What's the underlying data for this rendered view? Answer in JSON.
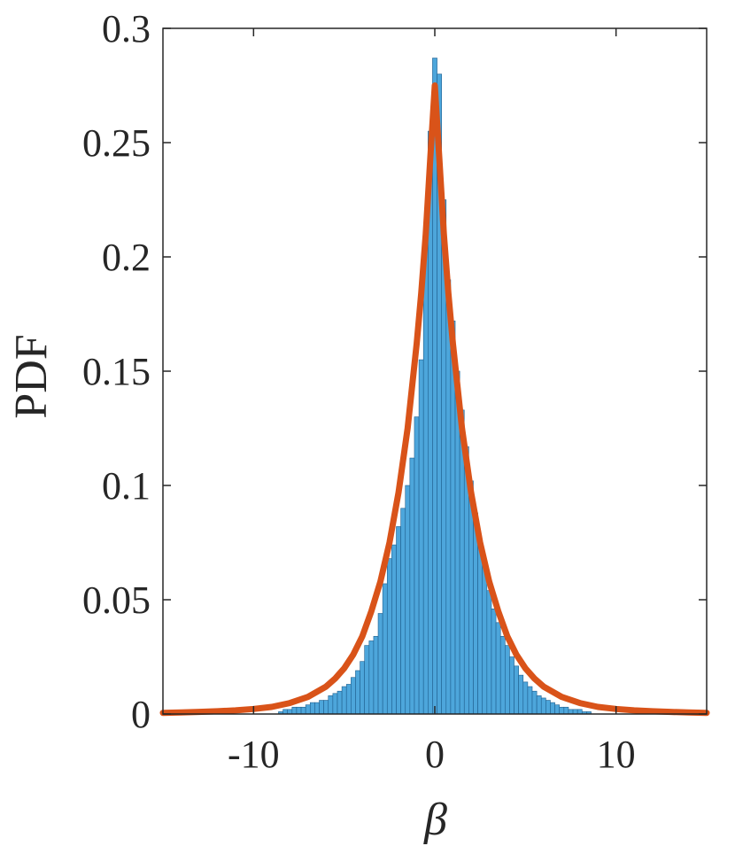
{
  "chart_data": {
    "type": "bar",
    "title": "",
    "xlabel": "β",
    "ylabel": "PDF",
    "xlim": [
      -15,
      15
    ],
    "ylim": [
      0,
      0.3
    ],
    "xticks": [
      -10,
      0,
      10
    ],
    "xtick_labels": [
      "-10",
      "0",
      "10"
    ],
    "yticks": [
      0,
      0.05,
      0.1,
      0.15,
      0.2,
      0.25,
      0.3
    ],
    "ytick_labels": [
      "0",
      "0.05",
      "0.1",
      "0.15",
      "0.2",
      "0.25",
      "0.3"
    ],
    "grid": false,
    "bar_color": "#4DA6DB",
    "bar_edge_color": "#1F5F8F",
    "line_color": "#D95319",
    "bin_width": 0.25,
    "bins": [
      [
        -8.5,
        0.001
      ],
      [
        -8.25,
        0.002
      ],
      [
        -8.0,
        0.002
      ],
      [
        -7.75,
        0.003
      ],
      [
        -7.5,
        0.003
      ],
      [
        -7.25,
        0.003
      ],
      [
        -7.0,
        0.004
      ],
      [
        -6.75,
        0.005
      ],
      [
        -6.5,
        0.005
      ],
      [
        -6.25,
        0.006
      ],
      [
        -6.0,
        0.006
      ],
      [
        -5.75,
        0.008
      ],
      [
        -5.5,
        0.009
      ],
      [
        -5.25,
        0.01
      ],
      [
        -5.0,
        0.012
      ],
      [
        -4.75,
        0.013
      ],
      [
        -4.5,
        0.016
      ],
      [
        -4.25,
        0.019
      ],
      [
        -4.0,
        0.023
      ],
      [
        -3.75,
        0.03
      ],
      [
        -3.5,
        0.032
      ],
      [
        -3.25,
        0.034
      ],
      [
        -3.0,
        0.044
      ],
      [
        -2.75,
        0.057
      ],
      [
        -2.5,
        0.068
      ],
      [
        -2.25,
        0.074
      ],
      [
        -2.0,
        0.082
      ],
      [
        -1.75,
        0.09
      ],
      [
        -1.5,
        0.1
      ],
      [
        -1.25,
        0.112
      ],
      [
        -1.0,
        0.13
      ],
      [
        -0.75,
        0.155
      ],
      [
        -0.5,
        0.205
      ],
      [
        -0.25,
        0.255
      ],
      [
        0.0,
        0.287
      ],
      [
        0.25,
        0.28
      ],
      [
        0.5,
        0.225
      ],
      [
        0.75,
        0.19
      ],
      [
        1.0,
        0.172
      ],
      [
        1.25,
        0.15
      ],
      [
        1.5,
        0.133
      ],
      [
        1.75,
        0.117
      ],
      [
        2.0,
        0.102
      ],
      [
        2.25,
        0.088
      ],
      [
        2.5,
        0.075
      ],
      [
        2.75,
        0.064
      ],
      [
        3.0,
        0.054
      ],
      [
        3.25,
        0.046
      ],
      [
        3.5,
        0.04
      ],
      [
        3.75,
        0.034
      ],
      [
        4.0,
        0.03
      ],
      [
        4.25,
        0.025
      ],
      [
        4.5,
        0.021
      ],
      [
        4.75,
        0.017
      ],
      [
        5.0,
        0.014
      ],
      [
        5.25,
        0.012
      ],
      [
        5.5,
        0.01
      ],
      [
        5.75,
        0.008
      ],
      [
        6.0,
        0.007
      ],
      [
        6.25,
        0.006
      ],
      [
        6.5,
        0.005
      ],
      [
        6.75,
        0.004
      ],
      [
        7.0,
        0.003
      ],
      [
        7.25,
        0.003
      ],
      [
        7.5,
        0.002
      ],
      [
        7.75,
        0.002
      ],
      [
        8.0,
        0.002
      ],
      [
        8.25,
        0.001
      ],
      [
        8.5,
        0.001
      ]
    ],
    "curve": {
      "x": [
        -15,
        -14,
        -13,
        -12,
        -11,
        -10,
        -9,
        -8,
        -7,
        -6,
        -5.5,
        -5,
        -4.5,
        -4,
        -3.5,
        -3,
        -2.5,
        -2,
        -1.5,
        -1,
        -0.75,
        -0.5,
        -0.25,
        0,
        0.25,
        0.5,
        0.75,
        1,
        1.5,
        2,
        2.5,
        3,
        3.5,
        4,
        4.5,
        5,
        5.5,
        6,
        7,
        8,
        9,
        10,
        11,
        12,
        13,
        14,
        15
      ],
      "y": [
        0.0005,
        0.0007,
        0.0009,
        0.0012,
        0.0016,
        0.0022,
        0.0031,
        0.0048,
        0.0075,
        0.012,
        0.0155,
        0.02,
        0.026,
        0.034,
        0.045,
        0.058,
        0.075,
        0.097,
        0.125,
        0.162,
        0.184,
        0.21,
        0.243,
        0.275,
        0.243,
        0.21,
        0.184,
        0.162,
        0.125,
        0.097,
        0.075,
        0.058,
        0.045,
        0.034,
        0.026,
        0.02,
        0.0155,
        0.012,
        0.0075,
        0.0048,
        0.0031,
        0.0022,
        0.0016,
        0.0012,
        0.0009,
        0.0007,
        0.0005
      ]
    }
  }
}
